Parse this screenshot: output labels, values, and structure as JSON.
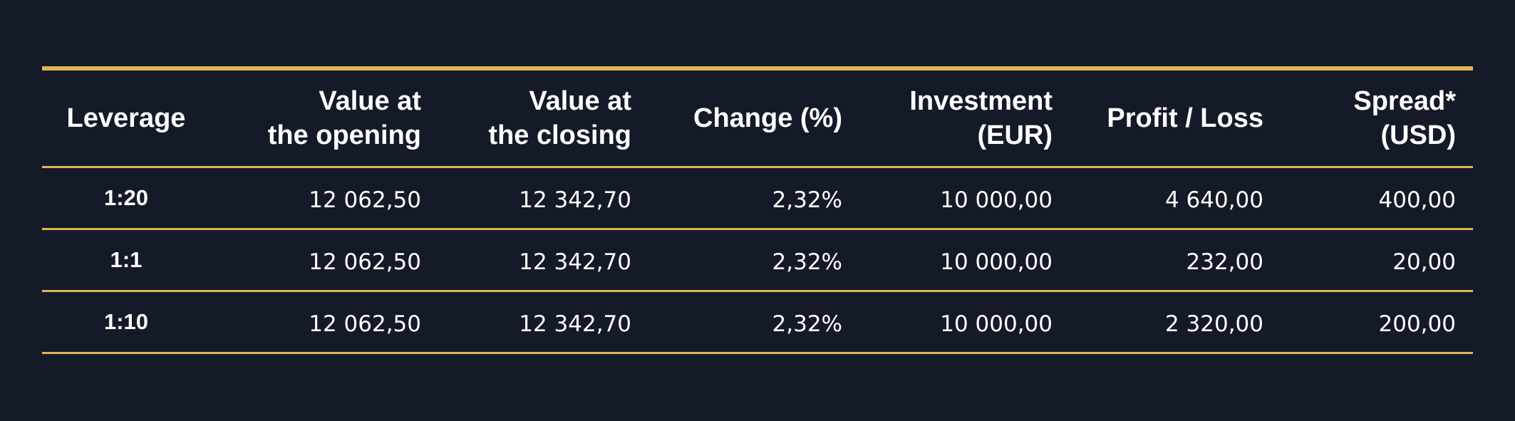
{
  "table": {
    "headers": {
      "leverage": [
        "Leverage"
      ],
      "opening": [
        "Value at",
        "the opening"
      ],
      "closing": [
        "Value at",
        "the closing"
      ],
      "change": [
        "Change (%)"
      ],
      "investment": [
        "Investment",
        "(EUR)"
      ],
      "profit": [
        "Profit / Loss"
      ],
      "spread": [
        "Spread*",
        "(USD)"
      ]
    },
    "rows": [
      {
        "leverage": "1:20",
        "opening": "12 062,50",
        "closing": "12 342,70",
        "change": "2,32%",
        "investment": "10 000,00",
        "profit": "4 640,00",
        "spread": "400,00"
      },
      {
        "leverage": "1:1",
        "opening": "12 062,50",
        "closing": "12 342,70",
        "change": "2,32%",
        "investment": "10 000,00",
        "profit": "232,00",
        "spread": "20,00"
      },
      {
        "leverage": "1:10",
        "opening": "12 062,50",
        "closing": "12 342,70",
        "change": "2,32%",
        "investment": "10 000,00",
        "profit": "2 320,00",
        "spread": "200,00"
      }
    ]
  },
  "colors": {
    "background": "#151a28",
    "accent": "#e2b457",
    "text": "#ffffff"
  }
}
